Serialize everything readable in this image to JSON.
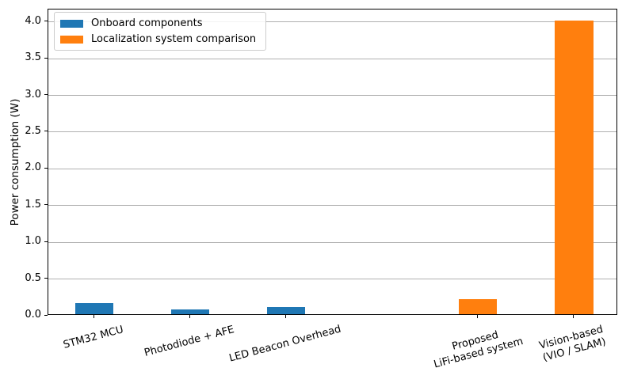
{
  "figure": {
    "background": "#ffffff"
  },
  "chart_data": {
    "type": "bar",
    "title": "",
    "xlabel": "",
    "ylabel": "Power consumption (W)",
    "ylim": [
      0,
      4.17
    ],
    "xlim": [
      -0.48,
      5.46
    ],
    "yticks": [
      "0.0",
      "0.5",
      "1.0",
      "1.5",
      "2.0",
      "2.5",
      "3.0",
      "3.5",
      "4.0"
    ],
    "grid": "horizontal",
    "bar_width_units": 0.4,
    "tick_label_rotation_deg": 15,
    "legend": {
      "position": "upper-left",
      "entries": [
        {
          "label": "Onboard components",
          "color": "#1f77b4"
        },
        {
          "label": "Localization system comparison",
          "color": "#ff7f0e"
        }
      ]
    },
    "bars": [
      {
        "label_lines": [
          "STM32 MCU"
        ],
        "x": 0,
        "value": 0.15,
        "series": "Onboard components",
        "color": "#1f77b4"
      },
      {
        "label_lines": [
          "Photodiode + AFE"
        ],
        "x": 1,
        "value": 0.06,
        "series": "Onboard components",
        "color": "#1f77b4"
      },
      {
        "label_lines": [
          "LED Beacon Overhead"
        ],
        "x": 2,
        "value": 0.1,
        "series": "Onboard components",
        "color": "#1f77b4"
      },
      {
        "label_lines": [
          "Proposed",
          "LiFi-based system"
        ],
        "x": 4,
        "value": 0.2,
        "series": "Localization system comparison",
        "color": "#ff7f0e"
      },
      {
        "label_lines": [
          "Vision-based",
          "(VIO / SLAM)"
        ],
        "x": 5,
        "value": 4.0,
        "series": "Localization system comparison",
        "color": "#ff7f0e"
      }
    ]
  }
}
